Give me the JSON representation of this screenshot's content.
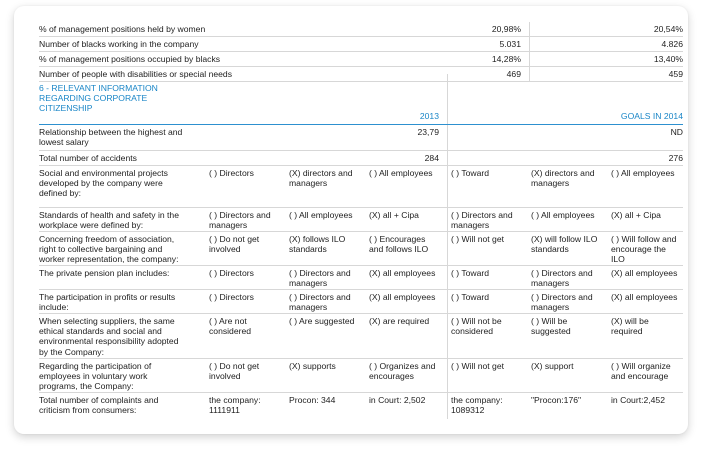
{
  "top_rows": [
    {
      "label": "% of management positions held by women",
      "v2013": "20,98%",
      "goal": "20,54%"
    },
    {
      "label": "Number of blacks working in the company",
      "v2013": "5.031",
      "goal": "4.826"
    },
    {
      "label": "% of management positions occupied by blacks",
      "v2013": "14,28%",
      "goal": "13,40%"
    },
    {
      "label": "Number of people with disabilities or special needs",
      "v2013": "469",
      "goal": "459"
    }
  ],
  "section": {
    "title_line1": "6 - RELEVANT INFORMATION",
    "title_line2": "REGARDING CORPORATE",
    "title_line3": "CITIZENSHIP",
    "col_2013": "2013",
    "col_goals": "GOALS IN 2014"
  },
  "ratio_row": {
    "label_line1": "Relationship between the highest and",
    "label_line2": "lowest salary",
    "v2013": "23,79",
    "goal": "ND"
  },
  "accidents_row": {
    "label": "Total number of accidents",
    "v2013": "284",
    "goal": "276"
  },
  "option_rows": [
    {
      "label": [
        "Social and environmental projects",
        "developed by the company were",
        "defined by:"
      ],
      "c1": [
        "( ) Directors"
      ],
      "c2": [
        "(X) directors and",
        "managers"
      ],
      "c3": [
        "( ) All employees"
      ],
      "g1": [
        "( ) Toward"
      ],
      "g2": [
        "(X) directors and",
        "managers"
      ],
      "g3": [
        "( ) All employees"
      ]
    },
    {
      "label": [
        "Standards of health and safety in the",
        "workplace were defined by:"
      ],
      "c1": [
        "( ) Directors and",
        "managers"
      ],
      "c2": [
        "( ) All employees"
      ],
      "c3": [
        "(X) all + Cipa"
      ],
      "g1": [
        "( ) Directors and",
        "managers"
      ],
      "g2": [
        "( ) All employees"
      ],
      "g3": [
        "(X) all + Cipa"
      ]
    },
    {
      "label": [
        "Concerning freedom of association,",
        "right to collective bargaining and",
        "worker representation, the company:"
      ],
      "c1": [
        "( ) Do not get",
        "involved"
      ],
      "c2": [
        "(X) follows ILO",
        "standards"
      ],
      "c3": [
        "( ) Encourages",
        "and follows ILO"
      ],
      "g1": [
        "( ) Will not get"
      ],
      "g2": [
        "(X) will follow ILO",
        "standards"
      ],
      "g3": [
        "( ) Will follow and",
        "encourage the",
        "ILO"
      ]
    },
    {
      "label": [
        "The private pension plan includes:"
      ],
      "c1": [
        "( ) Directors"
      ],
      "c2": [
        "( ) Directors and",
        "managers"
      ],
      "c3": [
        "(X) all employees"
      ],
      "g1": [
        "( ) Toward"
      ],
      "g2": [
        "( ) Directors and",
        "managers"
      ],
      "g3": [
        "(X) all employees"
      ]
    },
    {
      "label": [
        "The participation in profits or results",
        "include:"
      ],
      "c1": [
        "( ) Directors"
      ],
      "c2": [
        "( ) Directors and",
        "managers"
      ],
      "c3": [
        "(X) all employees"
      ],
      "g1": [
        "( ) Toward"
      ],
      "g2": [
        "( ) Directors and",
        "managers"
      ],
      "g3": [
        "(X) all employees"
      ]
    },
    {
      "label": [
        "When selecting suppliers, the same",
        "ethical standards and social and",
        "environmental responsibility adopted",
        "by the Company:"
      ],
      "c1": [
        "( ) Are not",
        "considered"
      ],
      "c2": [
        "( ) Are suggested"
      ],
      "c3": [
        "(X) are required"
      ],
      "g1": [
        "( ) Will not be",
        "considered"
      ],
      "g2": [
        "( ) Will be",
        "suggested"
      ],
      "g3": [
        "(X) will be",
        "required"
      ]
    },
    {
      "label": [
        "Regarding the participation of",
        "employees in voluntary work",
        "programs, the Company:"
      ],
      "c1": [
        "( ) Do not get",
        "involved"
      ],
      "c2": [
        "(X) supports"
      ],
      "c3": [
        "( ) Organizes and",
        "encourages"
      ],
      "g1": [
        "( ) Will not get"
      ],
      "g2": [
        "(X) support"
      ],
      "g3": [
        "( ) Will organize",
        "and encourage"
      ]
    },
    {
      "label": [
        "Total number of complaints and",
        "criticism from consumers:"
      ],
      "c1": [
        "the company:",
        "1111911"
      ],
      "c2": [
        "Procon: 344"
      ],
      "c3": [
        "in Court: 2,502"
      ],
      "g1": [
        "the company:",
        "1089312"
      ],
      "g2": [
        "\"Procon:176\""
      ],
      "g3": [
        "in Court:2,452"
      ]
    }
  ]
}
